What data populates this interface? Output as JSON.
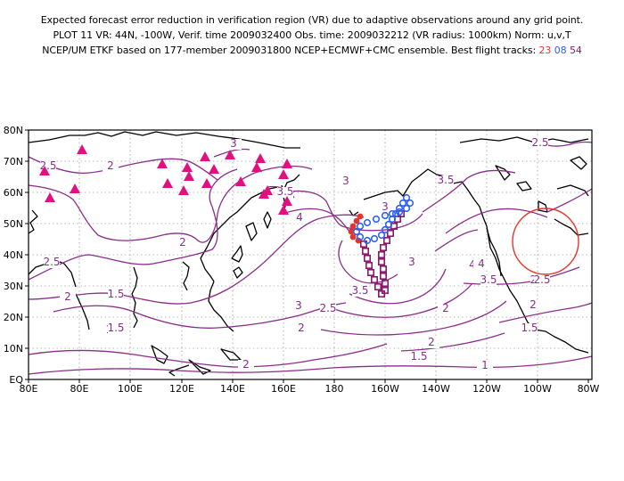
{
  "title": {
    "line1": "Expected forecast error reduction in verification region (VR) due to adaptive observations around any grid point.",
    "line2": "PLOT 11 VR: 44N, -100W, Verif. time 2009032400 Obs. time: 2009032212 (VR radius: 1000km) Norm: u,v,T",
    "line3_prefix": "NCEP/UM ETKF based on 177-member 2009031800 NCEP+ECMWF+CMC ensemble. Best flight tracks:",
    "track_a": "23",
    "track_b": "08",
    "track_c": "54"
  },
  "colors": {
    "contour": "#8a2d8a",
    "track_a": "#e8352b",
    "track_b": "#2f62e6",
    "track_c": "#8a1a6b",
    "triangles": "#e0107f",
    "vr_circle": "#e8352b"
  },
  "axes": {
    "x_ticks": [
      "80E",
      "80E",
      "100E",
      "120E",
      "140E",
      "160E",
      "180",
      "160W",
      "140W",
      "120W",
      "100W",
      "80W"
    ],
    "y_ticks": [
      "EQ",
      "10N",
      "20N",
      "30N",
      "40N",
      "50N",
      "60N",
      "70N",
      "80N"
    ]
  },
  "contour_labels": [
    "3",
    "2.5",
    "2",
    "3.5",
    "3",
    "2.5",
    "2",
    "2",
    "3.5",
    "4",
    "3.5",
    "3",
    "2.5",
    "2",
    "2.5",
    "3",
    "3.5",
    "4",
    "1.5",
    "2",
    "1.5",
    "1.5",
    "2",
    "1",
    "3",
    "2.5",
    "2",
    "1.5",
    "2.5",
    "2",
    "1.5",
    "4",
    "3"
  ]
}
